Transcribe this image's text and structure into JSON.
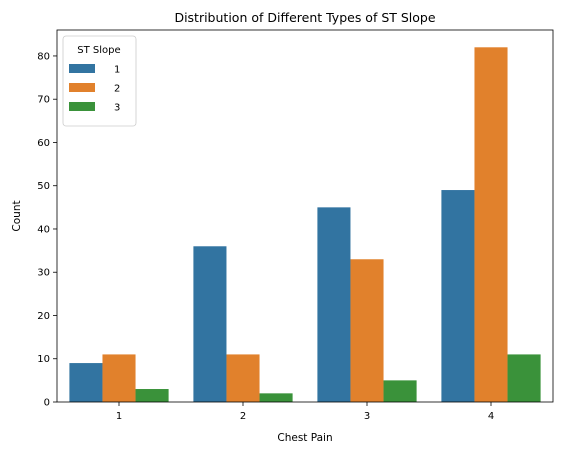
{
  "chart_data": {
    "type": "bar",
    "title": "Distribution of Different Types of ST Slope",
    "xlabel": "Chest Pain",
    "ylabel": "Count",
    "categories": [
      "1",
      "2",
      "3",
      "4"
    ],
    "series": [
      {
        "name": "1",
        "color": "#3274a1",
        "values": [
          9,
          36,
          45,
          49
        ]
      },
      {
        "name": "2",
        "color": "#e1812c",
        "values": [
          11,
          11,
          33,
          82
        ]
      },
      {
        "name": "3",
        "color": "#3a923a",
        "values": [
          3,
          2,
          5,
          11
        ]
      }
    ],
    "ylim": [
      0,
      86
    ],
    "yticks": [
      "0",
      "10",
      "20",
      "30",
      "40",
      "50",
      "60",
      "70",
      "80"
    ],
    "legend": {
      "title": "ST Slope",
      "placement": "top-left"
    },
    "grid": false
  }
}
